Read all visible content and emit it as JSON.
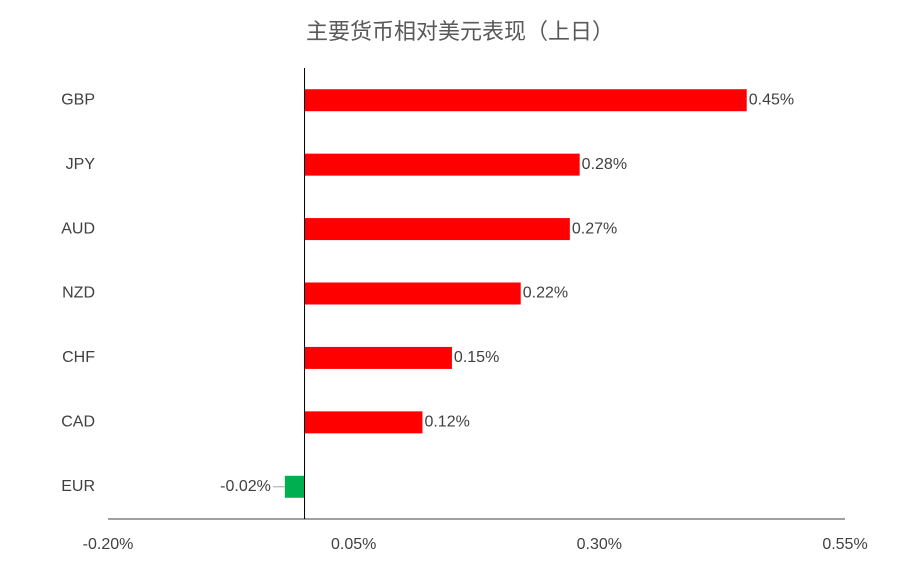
{
  "chart_data": {
    "type": "barh",
    "title": "主要货币相对美元表现（上日）",
    "categories": [
      "GBP",
      "JPY",
      "AUD",
      "NZD",
      "CHF",
      "CAD",
      "EUR"
    ],
    "values": [
      0.45,
      0.28,
      0.27,
      0.22,
      0.15,
      0.12,
      -0.02
    ],
    "value_labels": [
      "0.45%",
      "0.28%",
      "0.27%",
      "0.22%",
      "0.15%",
      "0.12%",
      "-0.02%"
    ],
    "colors": [
      "#ff0000",
      "#ff0000",
      "#ff0000",
      "#ff0000",
      "#ff0000",
      "#ff0000",
      "#00b050"
    ],
    "xlim": [
      -0.2,
      0.55
    ],
    "xticks": [
      {
        "value": -0.2,
        "label": "-0.20%"
      },
      {
        "value": 0.05,
        "label": "0.05%"
      },
      {
        "value": 0.3,
        "label": "0.30%"
      },
      {
        "value": 0.55,
        "label": "0.55%"
      }
    ],
    "grid": false
  }
}
